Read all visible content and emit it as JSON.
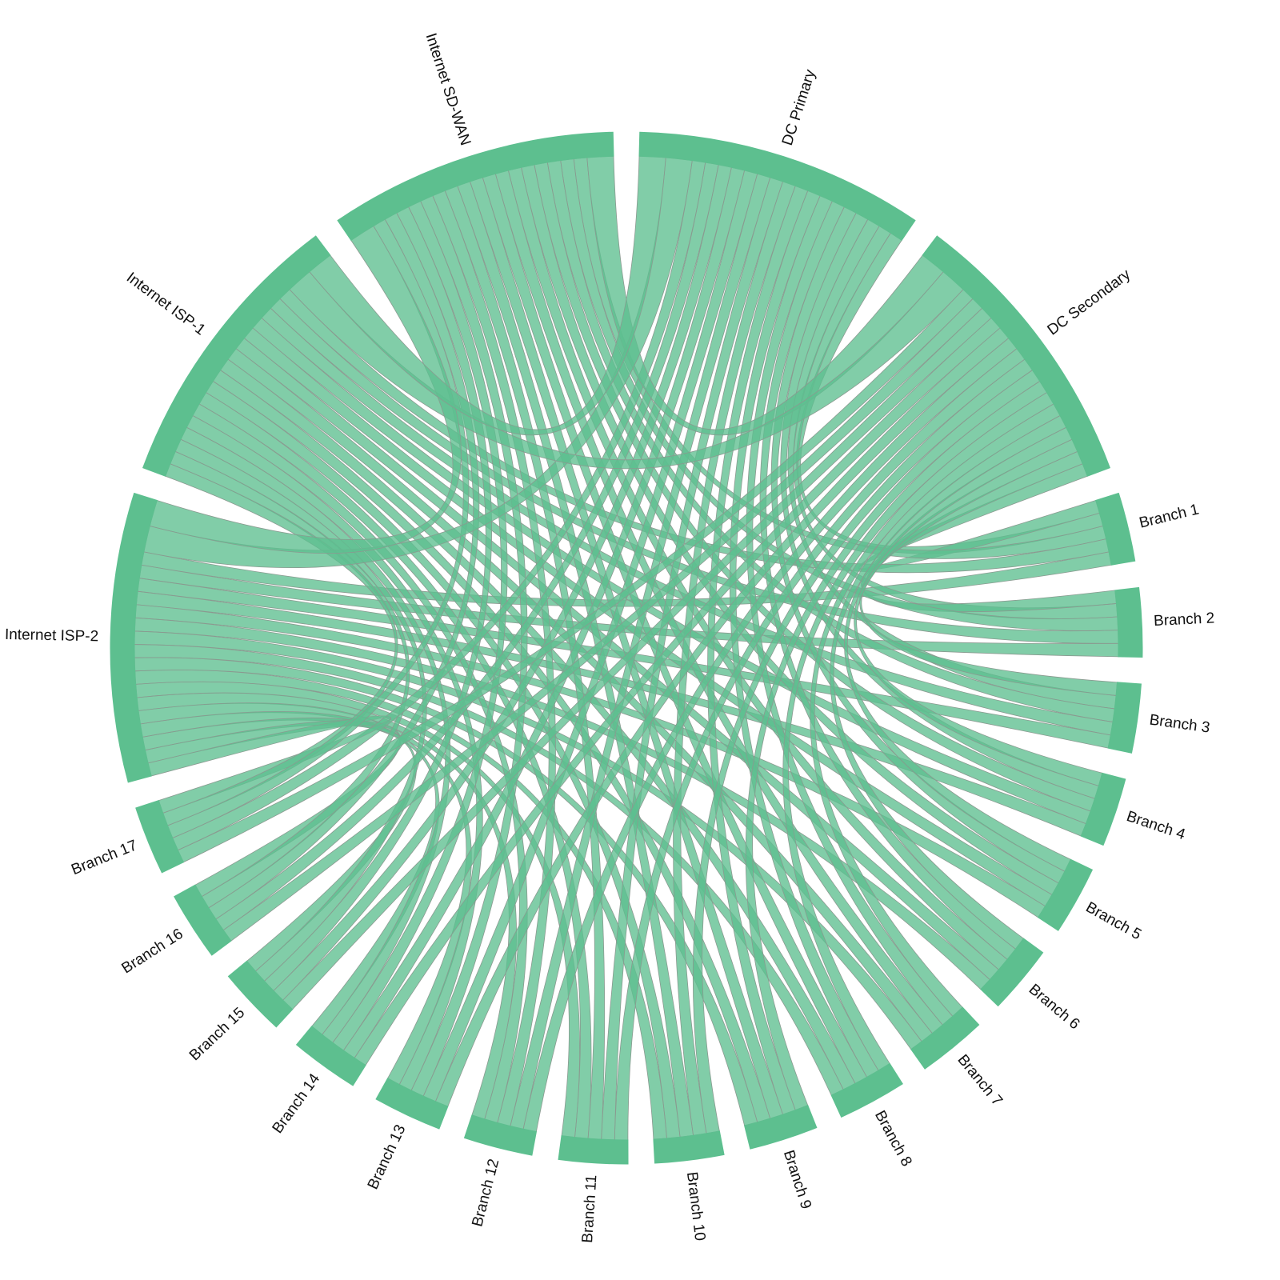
{
  "chart_data": {
    "type": "chord",
    "color": "#5dbf8f",
    "nodes": [
      "DC Primary",
      "DC Secondary",
      "Branch 1",
      "Branch 2",
      "Branch 3",
      "Branch 4",
      "Branch 5",
      "Branch 6",
      "Branch 7",
      "Branch 8",
      "Branch 9",
      "Branch 10",
      "Branch 11",
      "Branch 12",
      "Branch 13",
      "Branch 14",
      "Branch 15",
      "Branch 16",
      "Branch 17",
      "Internet ISP-2",
      "Internet ISP-1",
      "Internet SD-WAN"
    ],
    "links": [
      [
        "Branch 1",
        "DC Primary",
        1
      ],
      [
        "Branch 1",
        "DC Secondary",
        1
      ],
      [
        "Branch 1",
        "Internet ISP-2",
        1
      ],
      [
        "Branch 1",
        "Internet ISP-1",
        1
      ],
      [
        "Branch 1",
        "Internet SD-WAN",
        1
      ],
      [
        "Branch 2",
        "DC Primary",
        1
      ],
      [
        "Branch 2",
        "DC Secondary",
        1
      ],
      [
        "Branch 2",
        "Internet ISP-2",
        1
      ],
      [
        "Branch 2",
        "Internet ISP-1",
        1
      ],
      [
        "Branch 2",
        "Internet SD-WAN",
        1
      ],
      [
        "Branch 3",
        "DC Primary",
        1
      ],
      [
        "Branch 3",
        "DC Secondary",
        1
      ],
      [
        "Branch 3",
        "Internet ISP-2",
        1
      ],
      [
        "Branch 3",
        "Internet ISP-1",
        1
      ],
      [
        "Branch 3",
        "Internet SD-WAN",
        1
      ],
      [
        "Branch 4",
        "DC Primary",
        1
      ],
      [
        "Branch 4",
        "DC Secondary",
        1
      ],
      [
        "Branch 4",
        "Internet ISP-2",
        1
      ],
      [
        "Branch 4",
        "Internet ISP-1",
        1
      ],
      [
        "Branch 4",
        "Internet SD-WAN",
        1
      ],
      [
        "Branch 5",
        "DC Primary",
        1
      ],
      [
        "Branch 5",
        "DC Secondary",
        1
      ],
      [
        "Branch 5",
        "Internet ISP-2",
        1
      ],
      [
        "Branch 5",
        "Internet ISP-1",
        1
      ],
      [
        "Branch 5",
        "Internet SD-WAN",
        1
      ],
      [
        "Branch 6",
        "DC Primary",
        1
      ],
      [
        "Branch 6",
        "DC Secondary",
        1
      ],
      [
        "Branch 6",
        "Internet ISP-2",
        1
      ],
      [
        "Branch 6",
        "Internet ISP-1",
        1
      ],
      [
        "Branch 6",
        "Internet SD-WAN",
        1
      ],
      [
        "Branch 7",
        "DC Primary",
        1
      ],
      [
        "Branch 7",
        "DC Secondary",
        1
      ],
      [
        "Branch 7",
        "Internet ISP-2",
        1
      ],
      [
        "Branch 7",
        "Internet ISP-1",
        1
      ],
      [
        "Branch 7",
        "Internet SD-WAN",
        1
      ],
      [
        "Branch 8",
        "DC Primary",
        1
      ],
      [
        "Branch 8",
        "DC Secondary",
        1
      ],
      [
        "Branch 8",
        "Internet ISP-2",
        1
      ],
      [
        "Branch 8",
        "Internet ISP-1",
        1
      ],
      [
        "Branch 8",
        "Internet SD-WAN",
        1
      ],
      [
        "Branch 9",
        "DC Primary",
        1
      ],
      [
        "Branch 9",
        "DC Secondary",
        1
      ],
      [
        "Branch 9",
        "Internet ISP-2",
        1
      ],
      [
        "Branch 9",
        "Internet ISP-1",
        1
      ],
      [
        "Branch 9",
        "Internet SD-WAN",
        1
      ],
      [
        "Branch 10",
        "DC Primary",
        1
      ],
      [
        "Branch 10",
        "DC Secondary",
        1
      ],
      [
        "Branch 10",
        "Internet ISP-2",
        1
      ],
      [
        "Branch 10",
        "Internet ISP-1",
        1
      ],
      [
        "Branch 10",
        "Internet SD-WAN",
        1
      ],
      [
        "Branch 11",
        "DC Primary",
        1
      ],
      [
        "Branch 11",
        "DC Secondary",
        1
      ],
      [
        "Branch 11",
        "Internet ISP-2",
        1
      ],
      [
        "Branch 11",
        "Internet ISP-1",
        1
      ],
      [
        "Branch 11",
        "Internet SD-WAN",
        1
      ],
      [
        "Branch 12",
        "DC Primary",
        1
      ],
      [
        "Branch 12",
        "DC Secondary",
        1
      ],
      [
        "Branch 12",
        "Internet ISP-2",
        1
      ],
      [
        "Branch 12",
        "Internet ISP-1",
        1
      ],
      [
        "Branch 12",
        "Internet SD-WAN",
        1
      ],
      [
        "Branch 13",
        "DC Primary",
        1
      ],
      [
        "Branch 13",
        "DC Secondary",
        1
      ],
      [
        "Branch 13",
        "Internet ISP-2",
        1
      ],
      [
        "Branch 13",
        "Internet ISP-1",
        1
      ],
      [
        "Branch 13",
        "Internet SD-WAN",
        1
      ],
      [
        "Branch 14",
        "DC Primary",
        1
      ],
      [
        "Branch 14",
        "DC Secondary",
        1
      ],
      [
        "Branch 14",
        "Internet ISP-2",
        1
      ],
      [
        "Branch 14",
        "Internet ISP-1",
        1
      ],
      [
        "Branch 14",
        "Internet SD-WAN",
        1
      ],
      [
        "Branch 15",
        "DC Primary",
        1
      ],
      [
        "Branch 15",
        "DC Secondary",
        1
      ],
      [
        "Branch 15",
        "Internet ISP-2",
        1
      ],
      [
        "Branch 15",
        "Internet ISP-1",
        1
      ],
      [
        "Branch 15",
        "Internet SD-WAN",
        1
      ],
      [
        "Branch 16",
        "DC Primary",
        1
      ],
      [
        "Branch 16",
        "DC Secondary",
        1
      ],
      [
        "Branch 16",
        "Internet ISP-2",
        1
      ],
      [
        "Branch 16",
        "Internet ISP-1",
        1
      ],
      [
        "Branch 16",
        "Internet SD-WAN",
        1
      ],
      [
        "Branch 17",
        "DC Primary",
        1
      ],
      [
        "Branch 17",
        "DC Secondary",
        1
      ],
      [
        "Branch 17",
        "Internet ISP-2",
        1
      ],
      [
        "Branch 17",
        "Internet ISP-1",
        1
      ],
      [
        "Branch 17",
        "Internet SD-WAN",
        1
      ],
      [
        "Internet SD-WAN",
        "DC Secondary",
        2
      ],
      [
        "Internet ISP-2",
        "DC Primary",
        2
      ],
      [
        "Internet ISP-1",
        "DC Secondary",
        2
      ],
      [
        "Internet SD-WAN",
        "Internet ISP-2",
        2
      ],
      [
        "Internet ISP-1",
        "DC Primary",
        2
      ]
    ]
  }
}
